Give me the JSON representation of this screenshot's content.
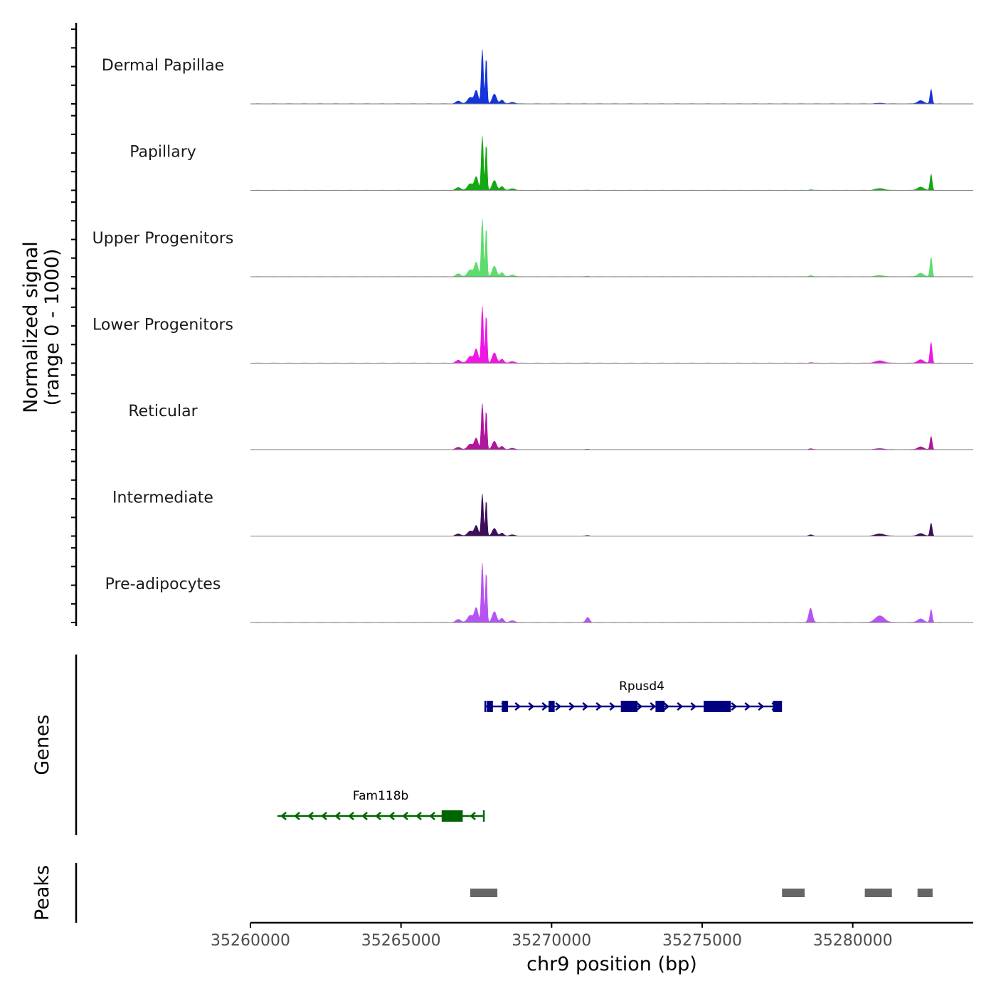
{
  "chart_data": {
    "type": "area",
    "title": "",
    "xlabel": "chr9 position (bp)",
    "ylabel_line1": "Normalized signal",
    "ylabel_line2": "(range 0 - 1000)",
    "genes_label": "Genes",
    "peaks_label": "Peaks",
    "x_range": [
      35260000,
      35284000
    ],
    "x_ticks": [
      35260000,
      35265000,
      35270000,
      35275000,
      35280000
    ],
    "x_tick_labels": [
      "35260000",
      "35265000",
      "35270000",
      "35275000",
      "35280000"
    ],
    "y_range": [
      0,
      1000
    ],
    "tracks": [
      {
        "name": "Dermal Papillae",
        "color": "#1435d9",
        "scale": 1.0,
        "fam": 0.05,
        "rp": 0.0,
        "rp2": 0.01,
        "end": 0.27
      },
      {
        "name": "Papillary",
        "color": "#14a814",
        "scale": 1.0,
        "fam": 0.05,
        "rp": 0.01,
        "rp2": 0.03,
        "end": 0.3
      },
      {
        "name": "Upper Progenitors",
        "color": "#5edc6e",
        "scale": 1.07,
        "fam": 0.07,
        "rp": 0.02,
        "rp2": 0.02,
        "end": 0.34
      },
      {
        "name": "Lower Progenitors",
        "color": "#ee17e4",
        "scale": 1.05,
        "fam": 0.06,
        "rp": 0.01,
        "rp2": 0.04,
        "end": 0.37
      },
      {
        "name": "Reticular",
        "color": "#b0159e",
        "scale": 0.85,
        "fam": 0.11,
        "rp": 0.02,
        "rp2": 0.02,
        "end": 0.29
      },
      {
        "name": "Intermediate",
        "color": "#3d0f5b",
        "scale": 0.78,
        "fam": 0.1,
        "rp": 0.03,
        "rp2": 0.05,
        "end": 0.31
      },
      {
        "name": "Pre-adipocytes",
        "color": "#b653f3",
        "scale": 1.1,
        "fam": 0.1,
        "rp": 0.24,
        "rp2": 0.11,
        "end": 0.22
      }
    ],
    "genes": [
      {
        "name": "Rpusd4",
        "strand": "+",
        "color": "#000080",
        "start": 35267800,
        "end": 35277600,
        "exons": [
          [
            35267850,
            35268050
          ],
          [
            35268350,
            35268550
          ],
          [
            35269900,
            35270100
          ],
          [
            35272300,
            35272850
          ],
          [
            35273450,
            35273750
          ],
          [
            35275050,
            35275950
          ],
          [
            35277350,
            35277650
          ]
        ]
      },
      {
        "name": "Fam118b",
        "strand": "-",
        "color": "#006400",
        "start": 35260900,
        "end": 35267750,
        "exons": [
          [
            35266350,
            35267050
          ]
        ]
      }
    ],
    "peaks": [
      [
        35267300,
        35268200
      ],
      [
        35277650,
        35278400
      ],
      [
        35280400,
        35281300
      ],
      [
        35282150,
        35282650
      ]
    ]
  }
}
